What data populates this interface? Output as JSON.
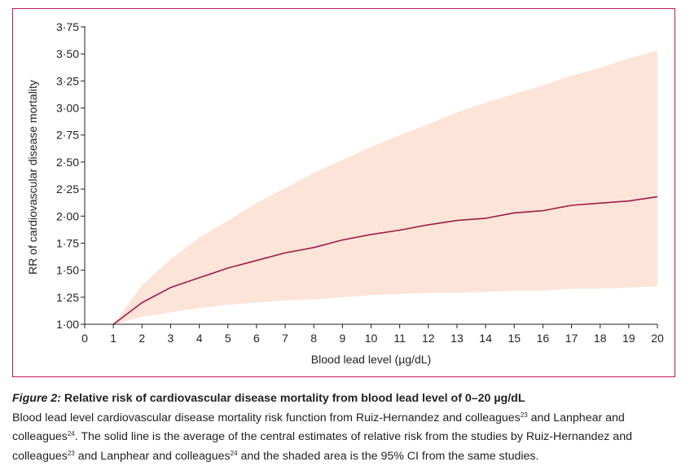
{
  "chart_data": {
    "type": "line",
    "xlabel": "Blood lead level (µg/dL)",
    "ylabel": "RR of cardiovascular disease mortality",
    "xlim": [
      0,
      20
    ],
    "ylim": [
      1.0,
      3.75
    ],
    "x_ticks": [
      "0",
      "1",
      "2",
      "3",
      "4",
      "5",
      "6",
      "7",
      "8",
      "9",
      "10",
      "11",
      "12",
      "13",
      "14",
      "15",
      "16",
      "17",
      "18",
      "19",
      "20"
    ],
    "y_ticks": [
      {
        "value": 1.0,
        "label": "1·00"
      },
      {
        "value": 1.25,
        "label": "1·25"
      },
      {
        "value": 1.5,
        "label": "1·50"
      },
      {
        "value": 1.75,
        "label": "1·75"
      },
      {
        "value": 2.0,
        "label": "2·00"
      },
      {
        "value": 2.25,
        "label": "2·25"
      },
      {
        "value": 2.5,
        "label": "2·50"
      },
      {
        "value": 2.75,
        "label": "2·75"
      },
      {
        "value": 3.0,
        "label": "3·00"
      },
      {
        "value": 3.25,
        "label": "3·25"
      },
      {
        "value": 3.5,
        "label": "3·50"
      },
      {
        "value": 3.75,
        "label": "3·75"
      }
    ],
    "grid": false,
    "x": [
      1,
      2,
      3,
      4,
      5,
      6,
      7,
      8,
      9,
      10,
      11,
      12,
      13,
      14,
      15,
      16,
      17,
      18,
      19,
      20
    ],
    "series": [
      {
        "values": [
          1.0,
          1.2,
          1.34,
          1.43,
          1.52,
          1.59,
          1.66,
          1.71,
          1.78,
          1.83,
          1.87,
          1.92,
          1.96,
          1.98,
          2.03,
          2.05,
          2.1,
          2.12,
          2.14,
          2.18
        ],
        "color": "#9e1b47"
      }
    ],
    "band": {
      "lower": [
        1.0,
        1.07,
        1.11,
        1.15,
        1.18,
        1.2,
        1.22,
        1.23,
        1.25,
        1.27,
        1.28,
        1.29,
        1.29,
        1.3,
        1.31,
        1.31,
        1.33,
        1.33,
        1.34,
        1.35
      ],
      "upper": [
        1.0,
        1.36,
        1.6,
        1.8,
        1.96,
        2.12,
        2.26,
        2.4,
        2.52,
        2.64,
        2.75,
        2.85,
        2.96,
        3.05,
        3.13,
        3.21,
        3.3,
        3.37,
        3.46,
        3.53
      ],
      "color": "#fde4d8"
    }
  },
  "colors": {
    "frame": "#c2185b",
    "axis": "#231f20",
    "line": "#9e1b47",
    "band": "#fde4d8"
  },
  "caption": {
    "label": "Figure 2:",
    "title": " Relative risk of cardiovascular disease mortality from blood lead level of 0–20 µg/dL",
    "t1": "Blood lead level cardiovascular disease mortality risk function from Ruiz-Hernandez and colleagues",
    "ref1": "23",
    "t2": " and Lanphear and colleagues",
    "ref2": "24",
    "t3": ". The solid line is the average of the central estimates of relative risk from the studies by Ruiz-Hernandez and colleagues",
    "ref3": "23",
    "t4": " and Lanphear and colleagues",
    "ref4": "24",
    "t5": " and the shaded area is the 95% CI from the same studies."
  }
}
